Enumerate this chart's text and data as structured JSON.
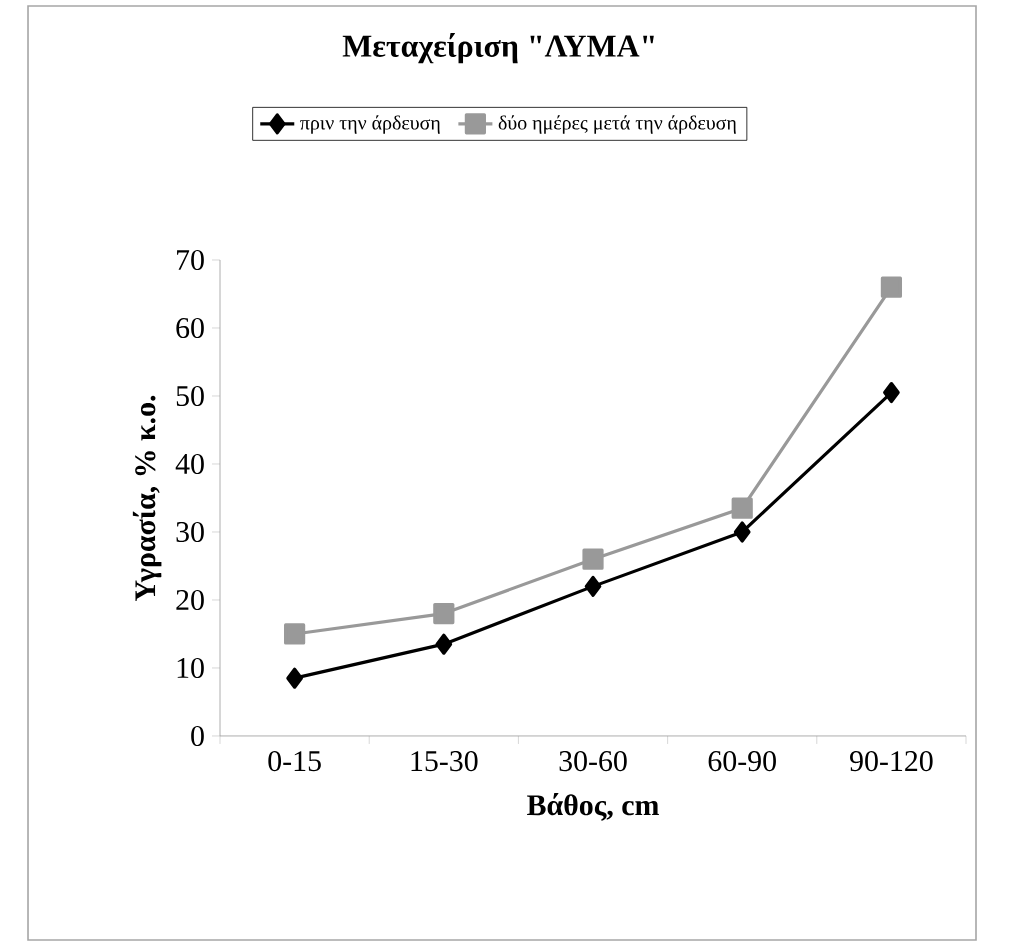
{
  "chart_data": {
    "type": "line",
    "title": "Μεταχείριση \"ΛΥΜΑ\"",
    "xlabel": "Βάθος, cm",
    "ylabel": "Υγρασία, % κ.ο.",
    "categories": [
      "0-15",
      "15-30",
      "30-60",
      "60-90",
      "90-120"
    ],
    "series": [
      {
        "name": "πριν την άρδευση",
        "color": "#000000",
        "marker": "diamond",
        "values": [
          8.5,
          13.5,
          22,
          30,
          50.5
        ]
      },
      {
        "name": "δύο ημέρες μετά την άρδευση",
        "color": "#999999",
        "marker": "square",
        "values": [
          15,
          18,
          26,
          33.5,
          66
        ]
      }
    ],
    "ylim": [
      0,
      70
    ],
    "yticks": [
      0,
      10,
      20,
      30,
      40,
      50,
      60,
      70
    ],
    "legend": "top",
    "line_style": "solid"
  }
}
